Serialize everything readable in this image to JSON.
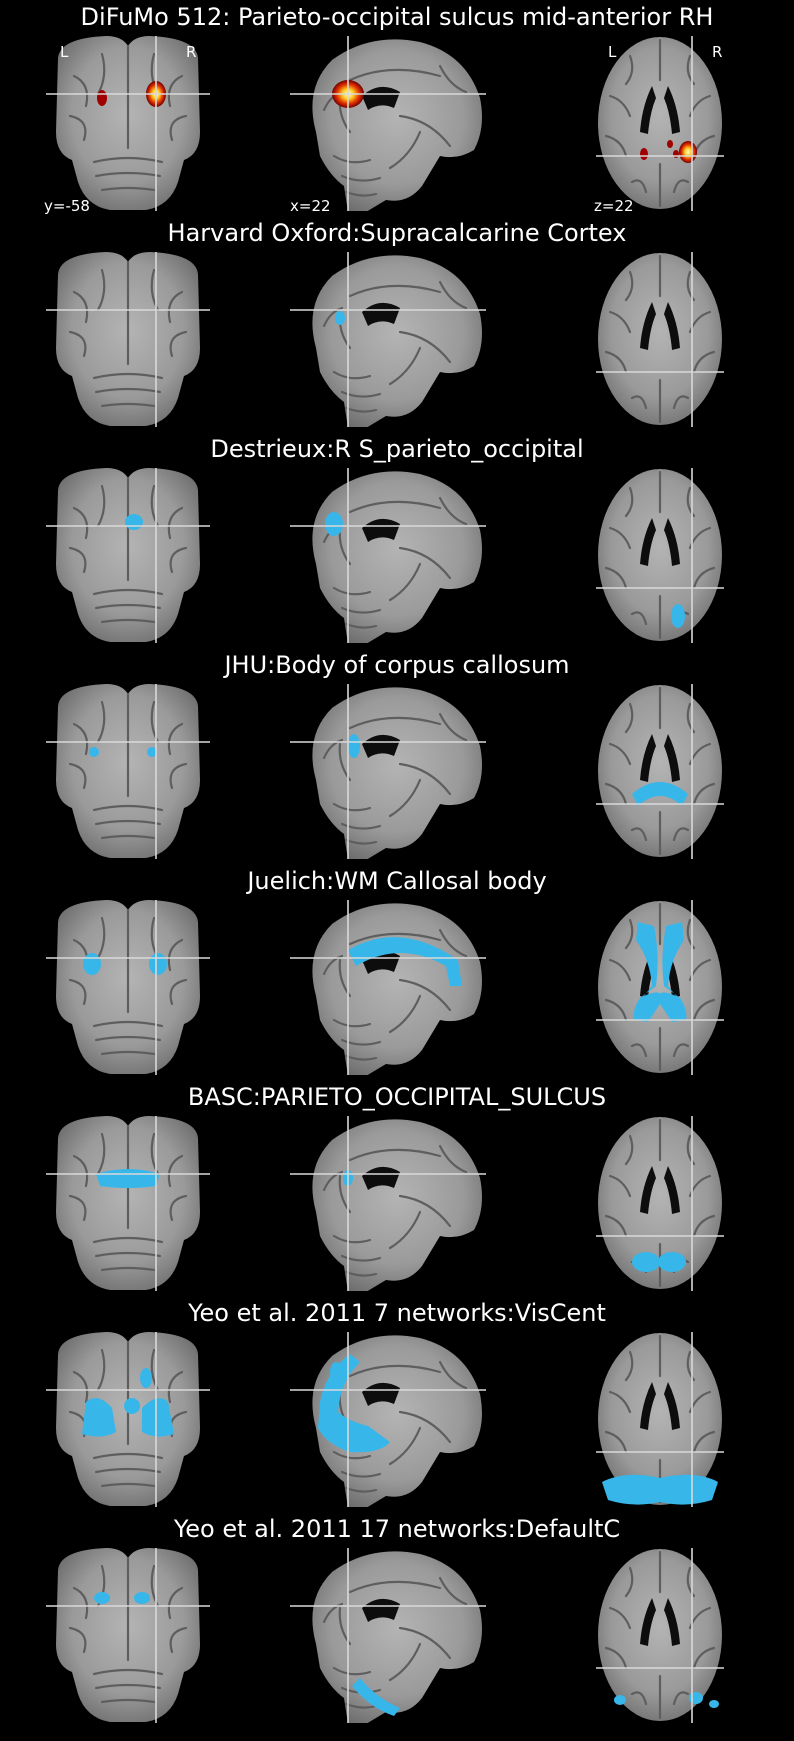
{
  "colors": {
    "background": "#000000",
    "overlay_blue": "#37b6ea",
    "crosshair": "#d9d9d9"
  },
  "header": {
    "left_label": "L",
    "right_label": "R",
    "coronal_coord": "y=-58",
    "sagittal_coord": "x=22",
    "axial_coord": "z=22"
  },
  "panels": [
    {
      "title": "DiFuMo 512: Parieto-occipital sulcus mid-anterior RH",
      "overlay": "heat"
    },
    {
      "title": "Harvard Oxford:Supracalcarine Cortex",
      "overlay": "blue"
    },
    {
      "title": "Destrieux:R S_parieto_occipital",
      "overlay": "blue"
    },
    {
      "title": "JHU:Body of corpus callosum",
      "overlay": "blue"
    },
    {
      "title": "Juelich:WM Callosal body",
      "overlay": "blue"
    },
    {
      "title": "BASC:PARIETO_OCCIPITAL_SULCUS",
      "overlay": "blue"
    },
    {
      "title": "Yeo et al. 2011 7 networks:VisCent",
      "overlay": "blue"
    },
    {
      "title": "Yeo et al. 2011 17 networks:DefaultC",
      "overlay": "blue"
    }
  ]
}
